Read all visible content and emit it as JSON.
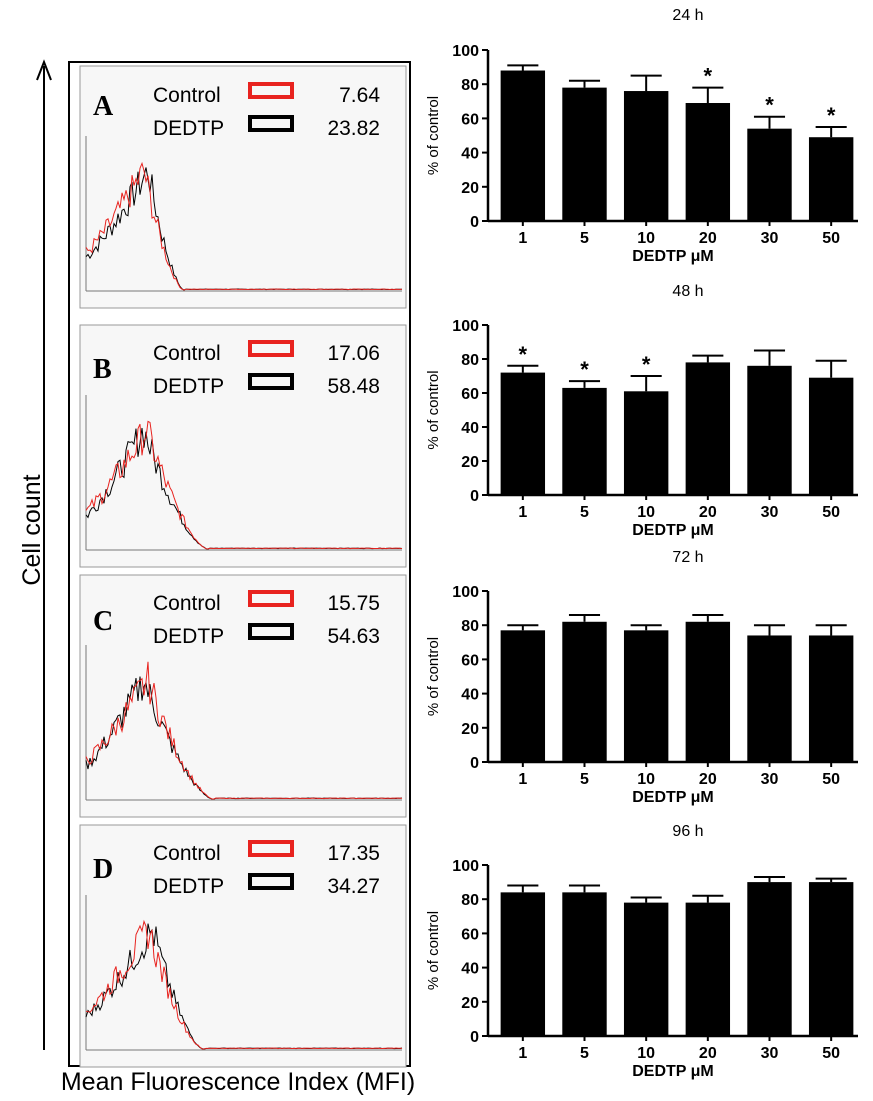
{
  "figure": {
    "y_axis_label": "Cell count",
    "x_axis_label": "Mean Fluorescence Index (MFI)"
  },
  "colors": {
    "control": "#e8231f",
    "dedtp": "#000000",
    "bar": "#000000"
  },
  "histograms": [
    {
      "letter": "A",
      "legend": [
        {
          "label": "Control",
          "value": "7.64"
        },
        {
          "label": "DEDTP",
          "value": "23.82"
        }
      ]
    },
    {
      "letter": "B",
      "legend": [
        {
          "label": "Control",
          "value": "17.06"
        },
        {
          "label": "DEDTP",
          "value": "58.48"
        }
      ]
    },
    {
      "letter": "C",
      "legend": [
        {
          "label": "Control",
          "value": "15.75"
        },
        {
          "label": "DEDTP",
          "value": "54.63"
        }
      ]
    },
    {
      "letter": "D",
      "legend": [
        {
          "label": "Control",
          "value": "17.35"
        },
        {
          "label": "DEDTP",
          "value": "34.27"
        }
      ]
    }
  ],
  "chart_data": [
    {
      "type": "bar",
      "title": "24 h",
      "xlabel": "DEDTP μM",
      "ylabel": "% of control",
      "categories": [
        "1",
        "5",
        "10",
        "20",
        "30",
        "50"
      ],
      "values": [
        88,
        78,
        76,
        69,
        54,
        49
      ],
      "errors": [
        3,
        4,
        9,
        9,
        7,
        6
      ],
      "significant": [
        false,
        false,
        false,
        true,
        true,
        true
      ],
      "ylim": [
        0,
        100
      ],
      "yticks": [
        "0",
        "20",
        "40",
        "60",
        "80",
        "100"
      ]
    },
    {
      "type": "bar",
      "title": "48 h",
      "xlabel": "DEDTP μM",
      "ylabel": "% of control",
      "categories": [
        "1",
        "5",
        "10",
        "20",
        "30",
        "50"
      ],
      "values": [
        72,
        63,
        61,
        78,
        76,
        69
      ],
      "errors": [
        4,
        4,
        9,
        4,
        9,
        10
      ],
      "significant": [
        true,
        true,
        true,
        false,
        false,
        false
      ],
      "ylim": [
        0,
        100
      ],
      "yticks": [
        "0",
        "20",
        "40",
        "60",
        "80",
        "100"
      ]
    },
    {
      "type": "bar",
      "title": "72 h",
      "xlabel": "DEDTP μM",
      "ylabel": "% of control",
      "categories": [
        "1",
        "5",
        "10",
        "20",
        "30",
        "50"
      ],
      "values": [
        77,
        82,
        77,
        82,
        74,
        74
      ],
      "errors": [
        3,
        4,
        3,
        4,
        6,
        6
      ],
      "significant": [
        false,
        false,
        false,
        false,
        false,
        false
      ],
      "ylim": [
        0,
        100
      ],
      "yticks": [
        "0",
        "20",
        "40",
        "60",
        "80",
        "100"
      ]
    },
    {
      "type": "bar",
      "title": "96 h",
      "xlabel": "DEDTP μM",
      "ylabel": "% of control",
      "categories": [
        "1",
        "5",
        "10",
        "20",
        "30",
        "50"
      ],
      "values": [
        84,
        84,
        78,
        78,
        90,
        90
      ],
      "errors": [
        4,
        4,
        3,
        4,
        3,
        2
      ],
      "significant": [
        false,
        false,
        false,
        false,
        false,
        false
      ],
      "ylim": [
        0,
        100
      ],
      "yticks": [
        "0",
        "20",
        "40",
        "60",
        "80",
        "100"
      ]
    }
  ]
}
